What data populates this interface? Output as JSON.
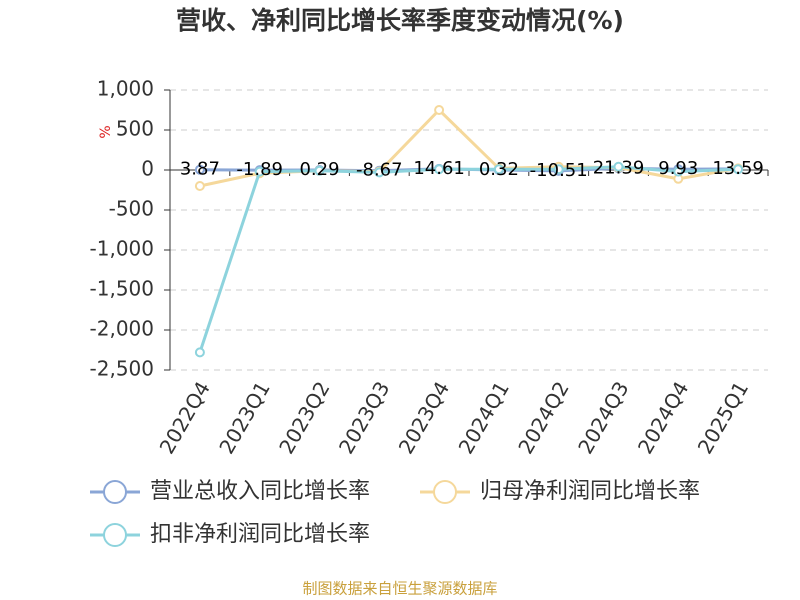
{
  "chart_data": {
    "type": "line",
    "title": "营收、净利同比增长率季度变动情况(%)",
    "y_label": "%",
    "categories": [
      "2022Q4",
      "2023Q1",
      "2023Q2",
      "2023Q3",
      "2023Q4",
      "2024Q1",
      "2024Q2",
      "2024Q3",
      "2024Q4",
      "2025Q1"
    ],
    "series": [
      {
        "name": "营业总收入同比增长率",
        "color": "#8aa6d6",
        "values": [
          3.87,
          -1.89,
          0.29,
          -8.67,
          14.61,
          0.32,
          -10.51,
          21.39,
          9.93,
          13.59
        ],
        "show_labels": true
      },
      {
        "name": "归母净利润同比增长率",
        "color": "#f5d89b",
        "values": [
          -200,
          -40,
          -10,
          -20,
          750,
          20,
          40,
          30,
          -110,
          20
        ]
      },
      {
        "name": "扣非净利润同比增长率",
        "color": "#8dd3dd",
        "values": [
          -2280,
          -20,
          -10,
          -30,
          10,
          10,
          10,
          40,
          -20,
          10
        ]
      }
    ],
    "ylim": [
      -2500,
      1000
    ],
    "yticks": [
      {
        "value": -2500,
        "label": "-2,500"
      },
      {
        "value": -2000,
        "label": "-2,000"
      },
      {
        "value": -1500,
        "label": "-1,500"
      },
      {
        "value": -1000,
        "label": "-1,000"
      },
      -500,
      0,
      500,
      {
        "value": 1000,
        "label": "1,000"
      }
    ],
    "grid": true,
    "source": "制图数据来自恒生聚源数据库"
  }
}
